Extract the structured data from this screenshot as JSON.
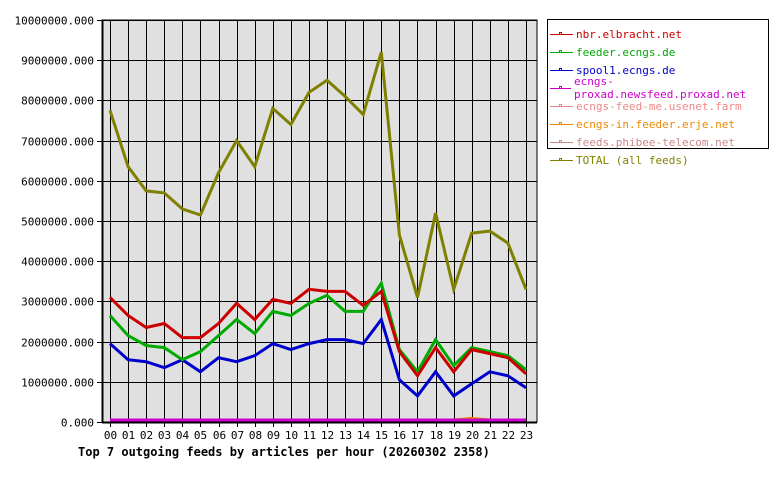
{
  "chart_data": {
    "type": "line",
    "title": "Top 7 outgoing feeds by articles per hour (20260302 2358)",
    "xlabel": "",
    "ylabel": "",
    "ylim": [
      0,
      10000000
    ],
    "grid": true,
    "legend_position": "right",
    "categories": [
      "00",
      "01",
      "02",
      "03",
      "04",
      "05",
      "06",
      "07",
      "08",
      "09",
      "10",
      "11",
      "12",
      "13",
      "14",
      "15",
      "16",
      "17",
      "18",
      "19",
      "20",
      "21",
      "22",
      "23"
    ],
    "y_ticks": [
      "0.000",
      "1000000.000",
      "2000000.000",
      "3000000.000",
      "4000000.000",
      "5000000.000",
      "6000000.000",
      "7000000.000",
      "8000000.000",
      "9000000.000",
      "10000000.000"
    ],
    "series": [
      {
        "name": "nbr.elbracht.net",
        "color": "#cc0000",
        "values": [
          3100000,
          2650000,
          2350000,
          2450000,
          2100000,
          2100000,
          2450000,
          2950000,
          2550000,
          3050000,
          2950000,
          3300000,
          3250000,
          3250000,
          2900000,
          3250000,
          1750000,
          1150000,
          1850000,
          1250000,
          1800000,
          1700000,
          1600000,
          1200000
        ]
      },
      {
        "name": "feeder.ecngs.de",
        "color": "#00aa00",
        "values": [
          2650000,
          2150000,
          1900000,
          1850000,
          1550000,
          1750000,
          2150000,
          2550000,
          2200000,
          2750000,
          2650000,
          2950000,
          3150000,
          2750000,
          2750000,
          3450000,
          1800000,
          1250000,
          2050000,
          1400000,
          1850000,
          1750000,
          1650000,
          1300000
        ]
      },
      {
        "name": "spool1.ecngs.de",
        "color": "#0000cc",
        "values": [
          1950000,
          1550000,
          1500000,
          1350000,
          1550000,
          1250000,
          1600000,
          1500000,
          1650000,
          1950000,
          1800000,
          1950000,
          2050000,
          2050000,
          1950000,
          2550000,
          1050000,
          650000,
          1250000,
          650000,
          950000,
          1250000,
          1150000,
          850000
        ]
      },
      {
        "name": "ecngs-proxad.newsfeed.proxad.net",
        "color": "#cc00cc",
        "values": [
          0,
          0,
          0,
          0,
          0,
          0,
          0,
          0,
          0,
          0,
          0,
          0,
          0,
          0,
          0,
          0,
          0,
          0,
          0,
          0,
          0,
          0,
          0,
          0
        ]
      },
      {
        "name": "ecngs-feed-me.usenet.farm",
        "color": "#ee8888",
        "values": [
          20000,
          20000,
          20000,
          20000,
          20000,
          20000,
          20000,
          20000,
          20000,
          20000,
          20000,
          20000,
          20000,
          50000,
          20000,
          50000,
          20000,
          20000,
          20000,
          20000,
          20000,
          20000,
          20000,
          20000
        ]
      },
      {
        "name": "ecngs-in.feeder.erje.net",
        "color": "#ee8800",
        "values": [
          0,
          0,
          0,
          0,
          0,
          0,
          0,
          0,
          0,
          0,
          0,
          0,
          0,
          0,
          0,
          0,
          0,
          0,
          0,
          30000,
          90000,
          40000,
          0,
          0
        ]
      },
      {
        "name": "feeds.phibee-telecom.net",
        "color": "#cc8888",
        "values": [
          10000,
          10000,
          10000,
          10000,
          10000,
          10000,
          10000,
          10000,
          10000,
          10000,
          10000,
          10000,
          10000,
          10000,
          10000,
          10000,
          10000,
          10000,
          10000,
          10000,
          10000,
          10000,
          10000,
          10000
        ]
      },
      {
        "name": "TOTAL (all feeds)",
        "color": "#808000",
        "values": [
          7750000,
          6350000,
          5750000,
          5700000,
          5300000,
          5150000,
          6200000,
          7000000,
          6350000,
          7800000,
          7400000,
          8200000,
          8500000,
          8100000,
          7650000,
          9200000,
          4650000,
          3100000,
          5200000,
          3300000,
          4700000,
          4750000,
          4450000,
          3300000
        ]
      }
    ]
  },
  "colors": {
    "plot_background": "#e0e0e0",
    "grid": "#000000",
    "page_background": "#ffffff"
  }
}
